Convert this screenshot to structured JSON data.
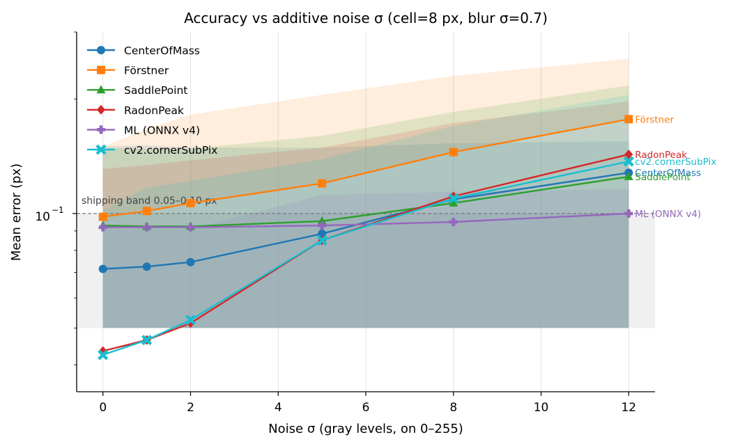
{
  "chart_data": {
    "type": "line",
    "title": "Accuracy vs additive noise σ (cell=8 px, blur σ=0.7)",
    "xlabel": "Noise σ (gray levels, on 0–255)",
    "ylabel": "Mean error (px)",
    "x": [
      0,
      1,
      2,
      5,
      8,
      12
    ],
    "xlim": [
      -0.6,
      12.6
    ],
    "ylim": [
      0.034,
      0.3
    ],
    "yscale": "log",
    "x_ticks": [
      "0",
      "2",
      "4",
      "6",
      "8",
      "10",
      "12"
    ],
    "y_tick_label": "10",
    "y_tick_exponent": "−1",
    "grid_x": true,
    "legend_position": "upper-left",
    "band": {
      "label": "shipping band 0.05–0.10 px",
      "low": 0.05,
      "high": 0.1,
      "color": "#f0f0f0"
    },
    "reference_line": 0.1,
    "series": [
      {
        "name": "CenterOfMass",
        "color": "#1f77b4",
        "marker": "circle",
        "values": [
          0.0715,
          0.0725,
          0.0745,
          0.0885,
          0.109,
          0.128
        ],
        "band_low": [
          0.05,
          0.05,
          0.05,
          0.05,
          0.05,
          0.05
        ],
        "band_high": [
          0.15,
          0.151,
          0.149,
          0.149,
          0.153,
          0.155
        ]
      },
      {
        "name": "Förstner",
        "color": "#ff7f0e",
        "marker": "square",
        "values": [
          0.098,
          0.1015,
          0.1065,
          0.12,
          0.145,
          0.177
        ],
        "band_low": [
          0.098,
          0.1015,
          0.1065,
          0.12,
          0.145,
          0.177
        ],
        "band_high": [
          0.15,
          0.167,
          0.182,
          0.205,
          0.23,
          0.255
        ]
      },
      {
        "name": "SaddlePoint",
        "color": "#2ca02c",
        "marker": "triangle",
        "values": [
          0.093,
          0.0925,
          0.0925,
          0.0955,
          0.1065,
          0.125
        ],
        "band_low": [
          0.05,
          0.05,
          0.05,
          0.05,
          0.05,
          0.05
        ],
        "band_high": [
          0.149,
          0.148,
          0.148,
          0.16,
          0.185,
          0.217
        ]
      },
      {
        "name": "RadonPeak",
        "color": "#d62728",
        "marker": "diamond",
        "values": [
          0.0435,
          0.0465,
          0.0515,
          0.085,
          0.111,
          0.143
        ],
        "band_low": [
          0.05,
          0.05,
          0.05,
          0.05,
          0.05,
          0.05
        ],
        "band_high": [
          0.131,
          0.134,
          0.138,
          0.149,
          0.173,
          0.197
        ]
      },
      {
        "name": "ML (ONNX v4)",
        "color": "#9467bd",
        "marker": "plus",
        "values": [
          0.092,
          0.092,
          0.092,
          0.093,
          0.095,
          0.1
        ],
        "band_low": [
          0.05,
          0.05,
          0.05,
          0.05,
          0.05,
          0.05
        ],
        "band_high": [
          0.091,
          0.091,
          0.091,
          0.112,
          0.114,
          0.116
        ]
      },
      {
        "name": "cv2.cornerSubPix",
        "color": "#17becf",
        "marker": "x",
        "values": [
          0.0425,
          0.0465,
          0.0525,
          0.085,
          0.1095,
          0.137
        ],
        "band_low": [
          0.05,
          0.05,
          0.05,
          0.05,
          0.05,
          0.05
        ],
        "band_high": [
          0.102,
          0.117,
          0.122,
          0.139,
          0.17,
          0.205
        ]
      }
    ]
  }
}
